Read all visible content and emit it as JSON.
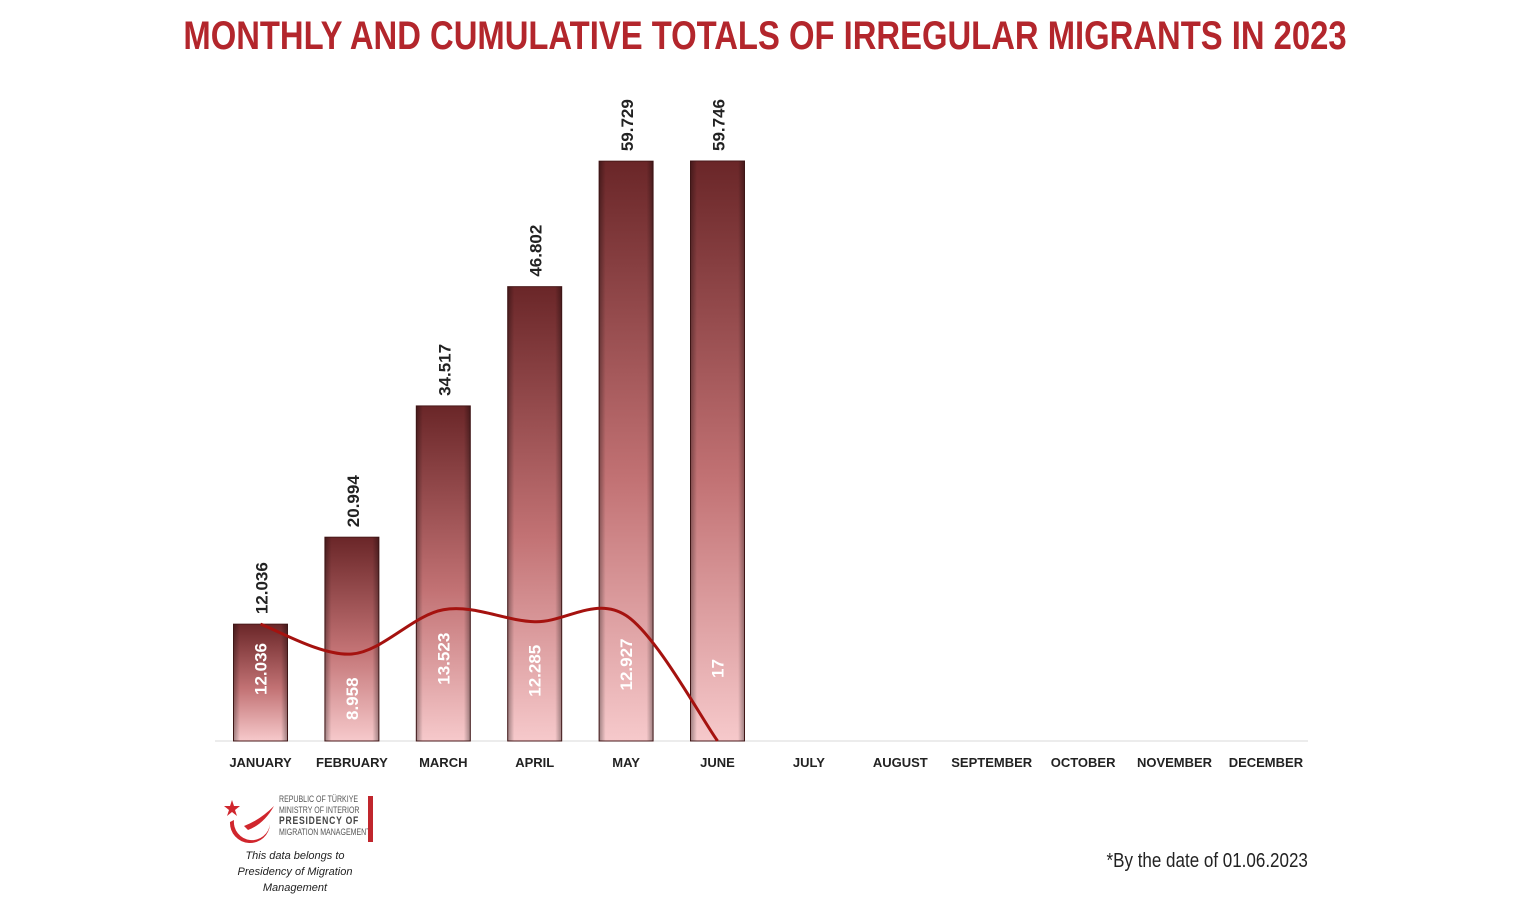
{
  "chart_data": {
    "type": "bar",
    "title": "MONTHLY AND CUMULATIVE TOTALS OF IRREGULAR MIGRANTS IN 2023",
    "categories": [
      "JANUARY",
      "FEBRUARY",
      "MARCH",
      "APRIL",
      "MAY",
      "JUNE",
      "JULY",
      "AUGUST",
      "SEPTEMBER",
      "OCTOBER",
      "NOVEMBER",
      "DECEMBER"
    ],
    "series": [
      {
        "type": "bar",
        "values": [
          12036,
          20994,
          34517,
          46802,
          59729,
          59746,
          null,
          null,
          null,
          null,
          null,
          null
        ],
        "labels": [
          "12.036",
          "20.994",
          "34.517",
          "46.802",
          "59.729",
          "59.746"
        ]
      },
      {
        "type": "line",
        "values": [
          12036,
          8958,
          13523,
          12285,
          12927,
          17,
          null,
          null,
          null,
          null,
          null,
          null
        ],
        "labels": [
          "12.036",
          "8.958",
          "13.523",
          "12.285",
          "12.927",
          "17"
        ]
      }
    ],
    "ylim": [
      0,
      70000
    ],
    "grid": false,
    "colors": {
      "bar_top": "#6e2a2c",
      "bar_bottom": "#f5c4c6",
      "line": "#a5120f",
      "title": "#b3262c"
    }
  },
  "footnote": "*By the date of 01.06.2023",
  "logo": {
    "line1": "REPUBLIC OF TÜRKIYE",
    "line2": "MINISTRY OF INTERIOR",
    "line3": "PRESIDENCY OF",
    "line4": "MIGRATION MANAGEMENT",
    "note1": "This data belongs to",
    "note2": "Presidency of Migration Management"
  }
}
